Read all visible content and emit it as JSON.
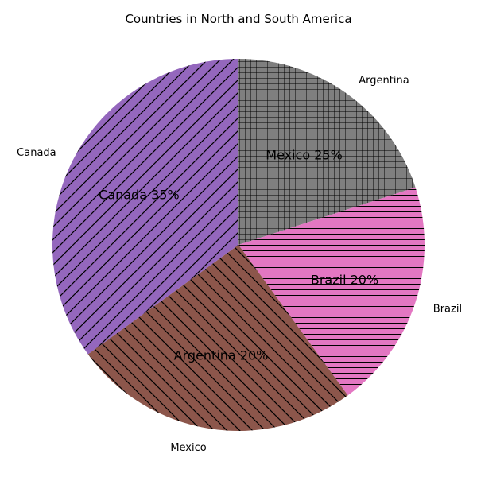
{
  "chart_data": {
    "type": "pie",
    "title": "Countries in North and South America",
    "start_angle_deg": 90,
    "direction": "clockwise",
    "slices": [
      {
        "label": "Argentina",
        "value": 20,
        "color": "#7f7f7f",
        "hatch": "grid"
      },
      {
        "label": "Brazil",
        "value": 20,
        "color": "#e377c2",
        "hatch": "horizontal"
      },
      {
        "label": "Mexico",
        "value": 25,
        "color": "#8c564b",
        "hatch": "backslash"
      },
      {
        "label": "Canada",
        "value": 35,
        "color": "#9467bd",
        "hatch": "slash"
      }
    ],
    "inner_labels": [
      "Mexico 25%",
      "Brazil 20%",
      "Argentina 20%",
      "Canada 35%"
    ]
  }
}
